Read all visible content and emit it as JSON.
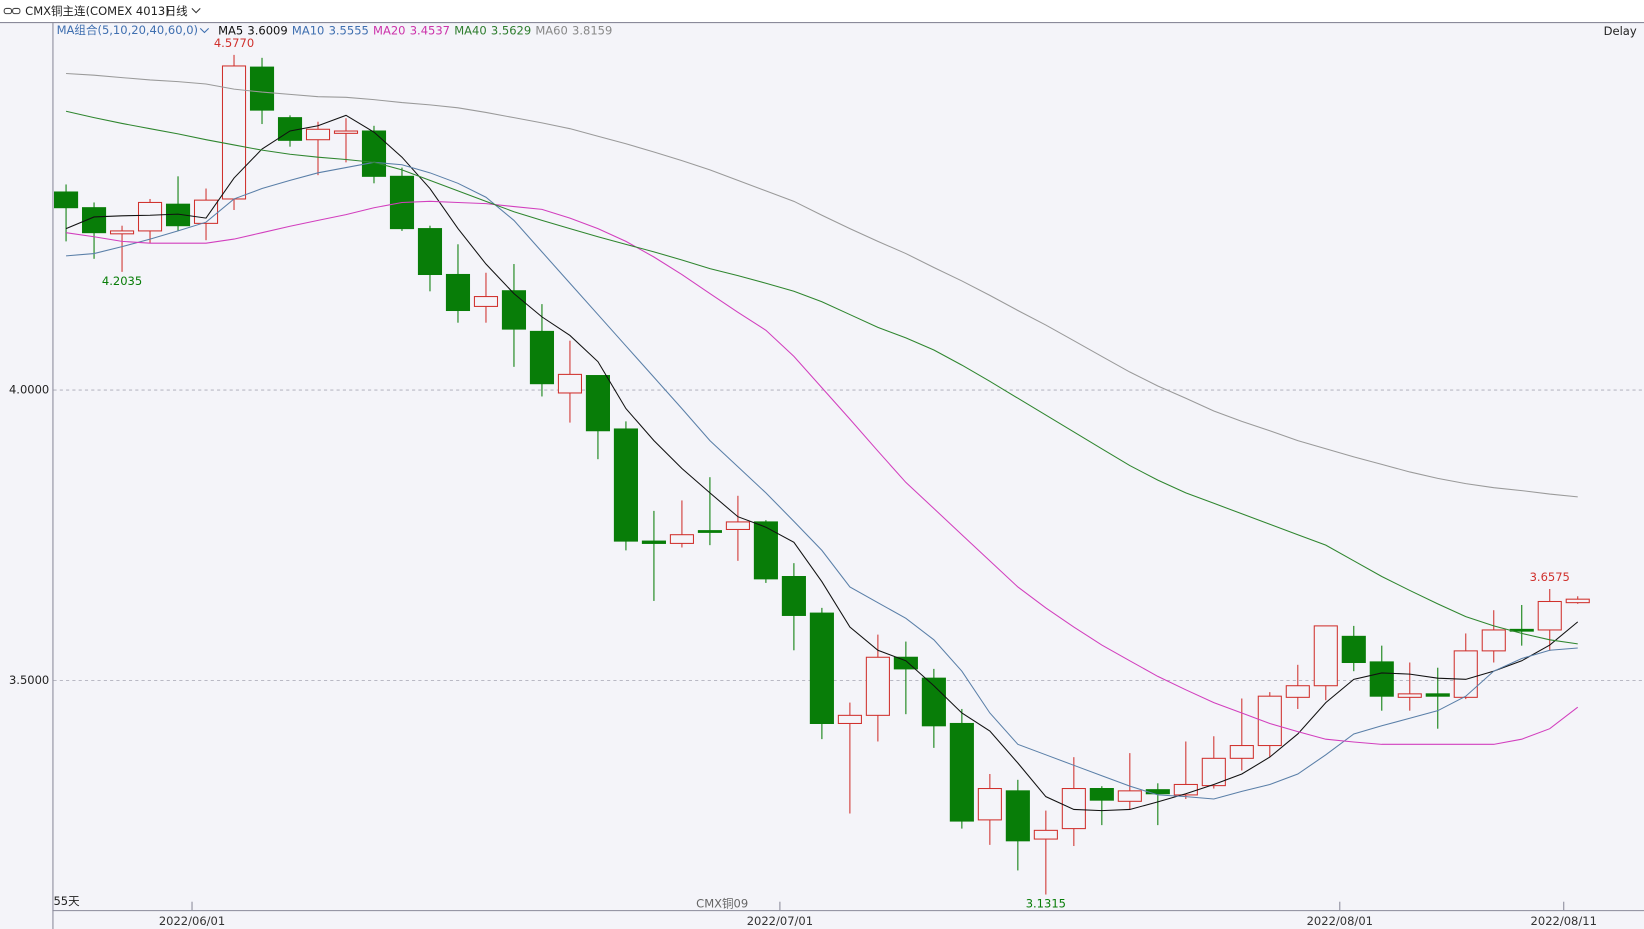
{
  "chart_data": {
    "type": "candlestick",
    "title": "CMX铜主连(COMEX 4013)",
    "period": "日线",
    "legend_title": "MA组合(5,10,20,40,60,0)",
    "delay": "Delay",
    "bar_count_label": "55天",
    "contract_label": "CMX铜09",
    "up_color": "#d0312d",
    "down_color": "#087d08",
    "grid": true,
    "ylim": [
      3.1047,
      4.6318
    ],
    "yticks": [
      {
        "value": 3.5,
        "label": "3.5000"
      },
      {
        "value": 4,
        "label": "4.0000"
      }
    ],
    "categories": [
      null,
      null,
      null,
      null,
      null,
      "2022/06/01",
      null,
      null,
      null,
      null,
      null,
      null,
      null,
      null,
      null,
      null,
      null,
      null,
      null,
      null,
      null,
      null,
      null,
      null,
      null,
      null,
      "2022/07/01",
      null,
      null,
      null,
      null,
      null,
      null,
      null,
      null,
      null,
      null,
      null,
      null,
      null,
      null,
      null,
      null,
      null,
      null,
      null,
      "2022/08/01",
      null,
      null,
      null,
      null,
      null,
      null,
      null,
      "2022/08/11"
    ],
    "open": [
      4.341,
      4.314,
      4.269,
      4.274,
      4.32,
      4.287,
      4.329,
      4.556,
      4.469,
      4.431,
      4.442,
      4.446,
      4.368,
      4.278,
      4.199,
      4.144,
      4.171,
      4.101,
      3.995,
      4.025,
      3.933,
      3.74,
      3.736,
      3.758,
      3.76,
      3.773,
      3.679,
      3.616,
      3.426,
      3.44,
      3.54,
      3.504,
      3.426,
      3.26,
      3.31,
      3.227,
      3.245,
      3.314,
      3.292,
      3.312,
      3.303,
      3.319,
      3.366,
      3.388,
      3.471,
      3.491,
      3.576,
      3.532,
      3.471,
      3.477,
      3.471,
      3.551,
      3.588,
      3.587,
      3.634
    ],
    "high": [
      4.354,
      4.323,
      4.283,
      4.329,
      4.368,
      4.347,
      4.577,
      4.572,
      4.473,
      4.462,
      4.468,
      4.455,
      4.383,
      4.283,
      4.251,
      4.202,
      4.217,
      4.148,
      4.085,
      4.025,
      3.946,
      3.792,
      3.81,
      3.85,
      3.818,
      3.776,
      3.702,
      3.625,
      3.462,
      3.579,
      3.567,
      3.52,
      3.451,
      3.339,
      3.329,
      3.276,
      3.368,
      3.318,
      3.375,
      3.323,
      3.395,
      3.404,
      3.469,
      3.48,
      3.527,
      3.594,
      3.594,
      3.56,
      3.531,
      3.522,
      3.581,
      3.621,
      3.63,
      3.6575,
      3.645
    ],
    "low": [
      4.256,
      4.226,
      4.2035,
      4.253,
      4.274,
      4.258,
      4.31,
      4.458,
      4.419,
      4.37,
      4.392,
      4.356,
      4.274,
      4.17,
      4.116,
      4.116,
      4.04,
      3.989,
      3.944,
      3.881,
      3.724,
      3.637,
      3.729,
      3.733,
      3.706,
      3.668,
      3.552,
      3.399,
      3.271,
      3.395,
      3.442,
      3.384,
      3.245,
      3.217,
      3.173,
      3.1315,
      3.215,
      3.251,
      3.278,
      3.251,
      3.296,
      3.314,
      3.345,
      3.368,
      3.451,
      3.466,
      3.516,
      3.448,
      3.448,
      3.417,
      3.468,
      3.531,
      3.56,
      3.551,
      3.632
    ],
    "close": [
      4.314,
      4.271,
      4.274,
      4.323,
      4.283,
      4.327,
      4.558,
      4.482,
      4.43,
      4.449,
      4.446,
      4.368,
      4.278,
      4.199,
      4.137,
      4.161,
      4.105,
      4.011,
      4.027,
      3.93,
      3.74,
      3.736,
      3.751,
      3.755,
      3.773,
      3.675,
      3.612,
      3.426,
      3.44,
      3.54,
      3.52,
      3.422,
      3.258,
      3.314,
      3.224,
      3.242,
      3.314,
      3.294,
      3.31,
      3.305,
      3.321,
      3.366,
      3.388,
      3.473,
      3.491,
      3.594,
      3.531,
      3.473,
      3.477,
      3.473,
      3.551,
      3.587,
      3.585,
      3.636,
      3.64
    ],
    "high_labels": [
      null,
      null,
      null,
      null,
      null,
      null,
      "4.5770",
      null,
      null,
      null,
      null,
      null,
      null,
      null,
      null,
      null,
      null,
      null,
      null,
      null,
      null,
      null,
      null,
      null,
      null,
      null,
      null,
      null,
      null,
      null,
      null,
      null,
      null,
      null,
      null,
      null,
      null,
      null,
      null,
      null,
      null,
      null,
      null,
      null,
      null,
      null,
      null,
      null,
      null,
      null,
      null,
      null,
      null,
      "3.6575",
      null
    ],
    "low_labels": [
      null,
      null,
      "4.2035",
      null,
      null,
      null,
      null,
      null,
      null,
      null,
      null,
      null,
      null,
      null,
      null,
      null,
      null,
      null,
      null,
      null,
      null,
      null,
      null,
      null,
      null,
      null,
      null,
      null,
      null,
      null,
      null,
      null,
      null,
      null,
      null,
      "3.1315",
      null,
      null,
      null,
      null,
      null,
      null,
      null,
      null,
      null,
      null,
      null,
      null,
      null,
      null,
      null,
      null,
      null,
      null,
      null
    ],
    "ma_series": [
      {
        "name": "MA5",
        "value": 3.6009,
        "color": "#111111",
        "text_color": "#111111",
        "values": [
          4.278,
          4.298,
          4.3,
          4.301,
          4.303,
          4.296,
          4.365,
          4.415,
          4.446,
          4.455,
          4.473,
          4.444,
          4.401,
          4.347,
          4.278,
          4.217,
          4.166,
          4.126,
          4.094,
          4.049,
          3.968,
          3.913,
          3.865,
          3.823,
          3.782,
          3.764,
          3.738,
          3.67,
          3.592,
          3.552,
          3.534,
          3.491,
          3.444,
          3.413,
          3.358,
          3.3,
          3.278,
          3.276,
          3.278,
          3.291,
          3.305,
          3.321,
          3.339,
          3.368,
          3.408,
          3.462,
          3.502,
          3.513,
          3.511,
          3.504,
          3.502,
          3.516,
          3.534,
          3.561,
          3.601
        ]
      },
      {
        "name": "MA10",
        "value": 3.5555,
        "color": "#5a7fa8",
        "text_color": "#3f6fb0",
        "values": [
          4.231,
          4.235,
          4.247,
          4.26,
          4.274,
          4.289,
          4.329,
          4.347,
          4.361,
          4.374,
          4.383,
          4.392,
          4.388,
          4.374,
          4.356,
          4.332,
          4.292,
          4.238,
          4.184,
          4.13,
          4.076,
          4.022,
          3.968,
          3.913,
          3.868,
          3.823,
          3.774,
          3.724,
          3.661,
          3.634,
          3.607,
          3.57,
          3.516,
          3.444,
          3.39,
          3.372,
          3.354,
          3.336,
          3.318,
          3.303,
          3.3,
          3.296,
          3.309,
          3.321,
          3.339,
          3.372,
          3.408,
          3.422,
          3.435,
          3.448,
          3.473,
          3.516,
          3.538,
          3.552,
          3.556
        ]
      },
      {
        "name": "MA20",
        "value": 3.4537,
        "color": "#d23fbe",
        "text_color": "#cc33aa",
        "values": [
          4.271,
          4.264,
          4.256,
          4.253,
          4.253,
          4.253,
          4.26,
          4.271,
          4.282,
          4.292,
          4.302,
          4.314,
          4.323,
          4.325,
          4.323,
          4.321,
          4.316,
          4.311,
          4.296,
          4.278,
          4.256,
          4.229,
          4.199,
          4.166,
          4.134,
          4.103,
          4.058,
          4.004,
          3.95,
          3.895,
          3.841,
          3.796,
          3.751,
          3.706,
          3.661,
          3.625,
          3.592,
          3.561,
          3.534,
          3.507,
          3.484,
          3.462,
          3.444,
          3.426,
          3.412,
          3.399,
          3.394,
          3.39,
          3.39,
          3.39,
          3.39,
          3.39,
          3.399,
          3.417,
          3.454
        ]
      },
      {
        "name": "MA40",
        "value": 3.5629,
        "color": "#2f862f",
        "text_color": "#2e7d2e",
        "values": [
          4.48,
          4.469,
          4.459,
          4.45,
          4.441,
          4.431,
          4.422,
          4.413,
          4.406,
          4.401,
          4.397,
          4.392,
          4.379,
          4.361,
          4.343,
          4.325,
          4.307,
          4.292,
          4.278,
          4.264,
          4.251,
          4.238,
          4.224,
          4.209,
          4.197,
          4.184,
          4.17,
          4.152,
          4.13,
          4.108,
          4.09,
          4.069,
          4.043,
          4.015,
          3.986,
          3.957,
          3.928,
          3.899,
          3.87,
          3.845,
          3.823,
          3.805,
          3.787,
          3.769,
          3.751,
          3.733,
          3.706,
          3.679,
          3.655,
          3.632,
          3.61,
          3.594,
          3.581,
          3.57,
          3.563
        ]
      },
      {
        "name": "MA60",
        "value": 3.8159,
        "color": "#9a9a9a",
        "text_color": "#888888",
        "values": [
          4.545,
          4.542,
          4.538,
          4.534,
          4.531,
          4.527,
          4.518,
          4.513,
          4.509,
          4.505,
          4.504,
          4.5,
          4.495,
          4.491,
          4.486,
          4.478,
          4.469,
          4.46,
          4.45,
          4.437,
          4.424,
          4.41,
          4.395,
          4.379,
          4.361,
          4.343,
          4.325,
          4.301,
          4.278,
          4.256,
          4.235,
          4.211,
          4.188,
          4.163,
          4.137,
          4.112,
          4.085,
          4.058,
          4.031,
          4.007,
          3.986,
          3.964,
          3.946,
          3.93,
          3.913,
          3.899,
          3.885,
          3.872,
          3.859,
          3.848,
          3.839,
          3.832,
          3.827,
          3.821,
          3.816
        ]
      }
    ]
  }
}
